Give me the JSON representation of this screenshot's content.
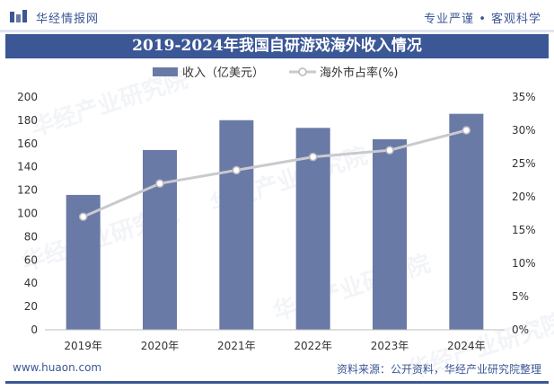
{
  "header": {
    "brand": "华经情报网",
    "slogan": "专业严谨 • 客观科学"
  },
  "title": "2019-2024年我国自研游戏海外收入情况",
  "footer": {
    "website": "www.huaon.com",
    "source": "资料来源：公开资料，华经产业研究院整理"
  },
  "watermark": {
    "text": "华经产业研究院"
  },
  "colors": {
    "bar": "#6a7aa6",
    "line": "#c9cace",
    "marker_fill": "#ffffff",
    "marker_stroke": "#b8b9bd",
    "brand": "#3b5796"
  },
  "chart_data": {
    "type": "bar",
    "title": "2019-2024年我国自研游戏海外收入情况",
    "categories": [
      "2019年",
      "2020年",
      "2021年",
      "2022年",
      "2023年",
      "2024年"
    ],
    "series": [
      {
        "name": "收入（亿美元）",
        "type": "bar",
        "axis": "left",
        "values": [
          115.9,
          154.5,
          180.1,
          173.5,
          163.7,
          185.6
        ]
      },
      {
        "name": "海外市占率(%)",
        "type": "line",
        "axis": "right",
        "values": [
          17,
          22,
          24,
          26,
          27,
          30
        ]
      }
    ],
    "ylim": [
      0,
      200
    ],
    "yticks": [
      "0",
      "20",
      "40",
      "60",
      "80",
      "100",
      "120",
      "140",
      "160",
      "180",
      "200"
    ],
    "y2lim": [
      0,
      35
    ],
    "y2ticks": [
      "0%",
      "5%",
      "10%",
      "15%",
      "20%",
      "25%",
      "30%",
      "35%"
    ],
    "xlabel": "",
    "ylabel": "",
    "grid": false,
    "legend": "top-center"
  }
}
